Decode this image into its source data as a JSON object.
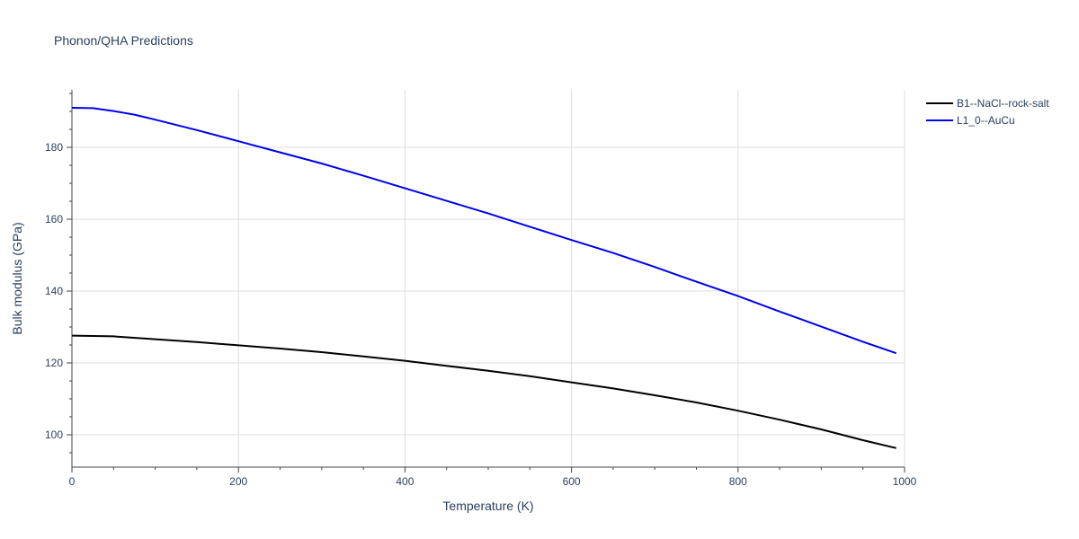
{
  "chart_data": {
    "type": "line",
    "title": "Phonon/QHA Predictions",
    "xlabel": "Temperature (K)",
    "ylabel": "Bulk modulus (GPa)",
    "xlim": [
      0,
      1000
    ],
    "ylim": [
      91,
      196
    ],
    "xticks": [
      0,
      200,
      400,
      600,
      800,
      1000
    ],
    "yticks": [
      100,
      120,
      140,
      160,
      180
    ],
    "grid": true,
    "legend_position": "top-right",
    "series": [
      {
        "name": "B1--NaCl--rock-salt",
        "color": "#000000",
        "x": [
          0,
          50,
          100,
          150,
          200,
          250,
          300,
          350,
          400,
          450,
          500,
          550,
          600,
          650,
          700,
          750,
          800,
          850,
          900,
          950,
          990
        ],
        "y": [
          127.6,
          127.4,
          126.6,
          125.8,
          124.9,
          124.0,
          123.0,
          121.8,
          120.6,
          119.2,
          117.8,
          116.3,
          114.6,
          112.9,
          111.0,
          109.0,
          106.7,
          104.2,
          101.5,
          98.5,
          96.3
        ]
      },
      {
        "name": "L1_0--AuCu",
        "color": "#0000ee",
        "x": [
          0,
          25,
          50,
          75,
          100,
          150,
          200,
          250,
          300,
          350,
          400,
          450,
          500,
          550,
          600,
          650,
          700,
          750,
          800,
          850,
          900,
          950,
          990
        ],
        "y": [
          191.0,
          190.9,
          190.1,
          189.1,
          187.7,
          184.8,
          181.7,
          178.6,
          175.5,
          172.1,
          168.6,
          165.1,
          161.6,
          157.9,
          154.2,
          150.6,
          146.7,
          142.6,
          138.6,
          134.3,
          130.1,
          125.9,
          122.7
        ]
      }
    ]
  }
}
